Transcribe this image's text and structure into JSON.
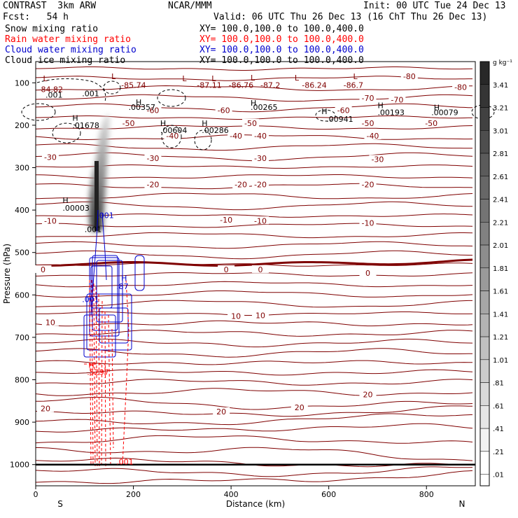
{
  "header": {
    "title_left": "CONTRAST  3km ARW",
    "center": "NCAR/MMM",
    "init": "Init: 00 UTC Tue 24 Dec 13",
    "fcst": "Fcst:   54 h",
    "valid": "Valid: 06 UTC Thu 26 Dec 13 (16 ChT Thu 26 Dec 13)",
    "fields": [
      {
        "name": "Snow mixing ratio",
        "xy": "XY= 100.0,100.0 to 100.0,400.0",
        "color": "#000000"
      },
      {
        "name": "Rain water mixing ratio",
        "xy": "XY= 100.0,100.0 to 100.0,400.0",
        "color": "#ff0000"
      },
      {
        "name": "Cloud water mixing ratio",
        "xy": "XY= 100.0,100.0 to 100.0,400.0",
        "color": "#0000cc"
      },
      {
        "name": "Cloud ice mixing ratio",
        "xy": "XY= 100.0,100.0 to 100.0,400.0",
        "color": "#000000"
      }
    ]
  },
  "chart_data": {
    "type": "contour",
    "xlabel": "Distance (km)",
    "ylabel": "Pressure (hPa)",
    "xlim": [
      0,
      900
    ],
    "ylim": [
      1050,
      50
    ],
    "x_ticks": [
      0,
      200,
      400,
      600,
      800
    ],
    "y_ticks": [
      100,
      200,
      300,
      400,
      500,
      600,
      700,
      800,
      900,
      1000
    ],
    "x_end_labels": {
      "left": "S",
      "right": "N"
    },
    "colorbar": {
      "unit": "g kg⁻¹",
      "levels": [
        "3.41",
        "3.21",
        "3.01",
        "2.81",
        "2.61",
        "2.41",
        "2.21",
        "2.01",
        "1.81",
        "1.61",
        "1.41",
        "1.21",
        "1.01",
        ".81",
        ".61",
        ".41",
        ".21",
        ".01"
      ]
    },
    "temperature_contours": {
      "color": "#7f0000",
      "interval": 5,
      "labels": [
        {
          "v": "-80",
          "x": 765,
          "p": 85
        },
        {
          "v": "-80",
          "x": 870,
          "p": 110
        },
        {
          "v": "-70",
          "x": 680,
          "p": 136
        },
        {
          "v": "-70",
          "x": 740,
          "p": 140
        },
        {
          "v": "-60",
          "x": 240,
          "p": 165
        },
        {
          "v": "-60",
          "x": 385,
          "p": 165
        },
        {
          "v": "-60",
          "x": 630,
          "p": 165
        },
        {
          "v": "-50",
          "x": 190,
          "p": 195
        },
        {
          "v": "-50",
          "x": 440,
          "p": 195
        },
        {
          "v": "-50",
          "x": 680,
          "p": 195
        },
        {
          "v": "-50",
          "x": 810,
          "p": 195
        },
        {
          "v": "-40",
          "x": 280,
          "p": 225
        },
        {
          "v": "-40",
          "x": 410,
          "p": 225
        },
        {
          "v": "-40",
          "x": 460,
          "p": 225
        },
        {
          "v": "-40",
          "x": 690,
          "p": 225
        },
        {
          "v": "-30",
          "x": 30,
          "p": 275
        },
        {
          "v": "-30",
          "x": 240,
          "p": 278
        },
        {
          "v": "-30",
          "x": 460,
          "p": 278
        },
        {
          "v": "-30",
          "x": 700,
          "p": 280
        },
        {
          "v": "-20",
          "x": 240,
          "p": 340
        },
        {
          "v": "-20",
          "x": 420,
          "p": 340
        },
        {
          "v": "-20",
          "x": 460,
          "p": 340
        },
        {
          "v": "-20",
          "x": 680,
          "p": 340
        },
        {
          "v": "-10",
          "x": 30,
          "p": 425
        },
        {
          "v": "-10",
          "x": 390,
          "p": 423
        },
        {
          "v": "-10",
          "x": 460,
          "p": 425
        },
        {
          "v": "-10",
          "x": 680,
          "p": 430
        },
        {
          "v": "0",
          "x": 15,
          "p": 540
        },
        {
          "v": "0",
          "x": 390,
          "p": 540
        },
        {
          "v": "0",
          "x": 460,
          "p": 540
        },
        {
          "v": "0",
          "x": 680,
          "p": 548
        },
        {
          "v": "10",
          "x": 30,
          "p": 665
        },
        {
          "v": "10",
          "x": 410,
          "p": 650
        },
        {
          "v": "10",
          "x": 460,
          "p": 648
        },
        {
          "v": "20",
          "x": 20,
          "p": 868
        },
        {
          "v": "20",
          "x": 380,
          "p": 875
        },
        {
          "v": "20",
          "x": 540,
          "p": 865
        },
        {
          "v": "20",
          "x": 680,
          "p": 835
        }
      ],
      "min_labels": [
        {
          "v": "-84.82",
          "x": 5,
          "p": 115
        },
        {
          "v": "-85.74",
          "x": 175,
          "p": 105
        },
        {
          "v": "-87.11",
          "x": 330,
          "p": 105
        },
        {
          "v": "-86.76",
          "x": 395,
          "p": 105
        },
        {
          "v": "-87.2",
          "x": 460,
          "p": 105
        },
        {
          "v": "-86.24",
          "x": 545,
          "p": 105
        },
        {
          "v": "-86.7",
          "x": 630,
          "p": 105
        }
      ]
    },
    "ice_contours": {
      "color": "#000000",
      "labels": [
        {
          "v": ".001",
          "x": 20,
          "p": 128
        },
        {
          "v": ".001",
          "x": 95,
          "p": 125
        },
        {
          "v": ".00357",
          "x": 190,
          "p": 157
        },
        {
          "v": ".00265",
          "x": 440,
          "p": 157
        },
        {
          "v": ".00193",
          "x": 700,
          "p": 170
        },
        {
          "v": ".00079",
          "x": 810,
          "p": 170
        },
        {
          "v": ".00941",
          "x": 595,
          "p": 185
        },
        {
          "v": ".01678",
          "x": 75,
          "p": 200
        },
        {
          "v": ".00604",
          "x": 255,
          "p": 212
        },
        {
          "v": ".00286",
          "x": 340,
          "p": 212
        },
        {
          "v": ".00003",
          "x": 55,
          "p": 395
        },
        {
          "v": ".001",
          "x": 100,
          "p": 445
        }
      ],
      "highs": [
        {
          "x": 205,
          "p": 146
        },
        {
          "x": 440,
          "p": 147
        },
        {
          "x": 585,
          "p": 167
        },
        {
          "x": 700,
          "p": 153
        },
        {
          "x": 815,
          "p": 158
        },
        {
          "x": 75,
          "p": 183
        },
        {
          "x": 255,
          "p": 195
        },
        {
          "x": 340,
          "p": 195
        },
        {
          "x": 55,
          "p": 377
        }
      ]
    },
    "cloud_water": {
      "color": "#0000cc",
      "labels": [
        {
          "v": ".001",
          "x": 125,
          "p": 412
        },
        {
          "v": ".87",
          "x": 165,
          "p": 580
        },
        {
          "v": ".001",
          "x": 95,
          "p": 610
        }
      ],
      "highs": [
        {
          "x": 175,
          "p": 560
        }
      ]
    },
    "rain_water": {
      "color": "#ff0000",
      "labels": [
        {
          "v": ".5297",
          "x": 105,
          "p": 782
        },
        {
          "v": ".001",
          "x": 165,
          "p": 993
        }
      ],
      "highs": [
        {
          "x": 108,
          "p": 765
        }
      ]
    },
    "low_marks": [
      {
        "x": 15,
        "p": 90
      },
      {
        "x": 155,
        "p": 85
      },
      {
        "x": 300,
        "p": 90
      },
      {
        "x": 360,
        "p": 90
      },
      {
        "x": 440,
        "p": 88
      },
      {
        "x": 530,
        "p": 88
      },
      {
        "x": 650,
        "p": 85
      }
    ],
    "ground_line_p": 1000
  }
}
